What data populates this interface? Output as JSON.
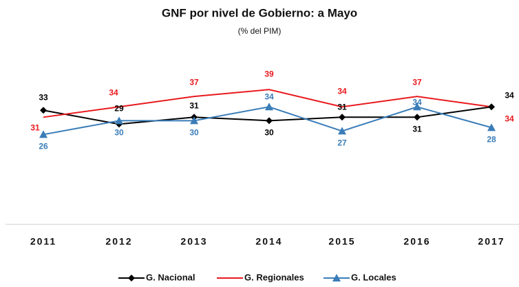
{
  "chart_data": {
    "type": "line",
    "title": "GNF por nivel de Gobierno: a Mayo",
    "subtitle": "(% del PIM)",
    "categories": [
      "2011",
      "2012",
      "2013",
      "2014",
      "2015",
      "2016",
      "2017"
    ],
    "series": [
      {
        "name": "G. Nacional",
        "color": "#000000",
        "marker": "diamond",
        "values": [
          33,
          29,
          31,
          30,
          31,
          31,
          34
        ]
      },
      {
        "name": "G. Regionales",
        "color": "#e8191e",
        "marker": "none",
        "values": [
          31,
          34,
          37,
          39,
          34,
          37,
          34
        ]
      },
      {
        "name": "G. Locales",
        "color": "#3a7db8",
        "marker": "triangle",
        "values": [
          26,
          30,
          30,
          34,
          27,
          34,
          28
        ]
      }
    ],
    "ylim": [
      0,
      45
    ],
    "legend": "bottom"
  }
}
